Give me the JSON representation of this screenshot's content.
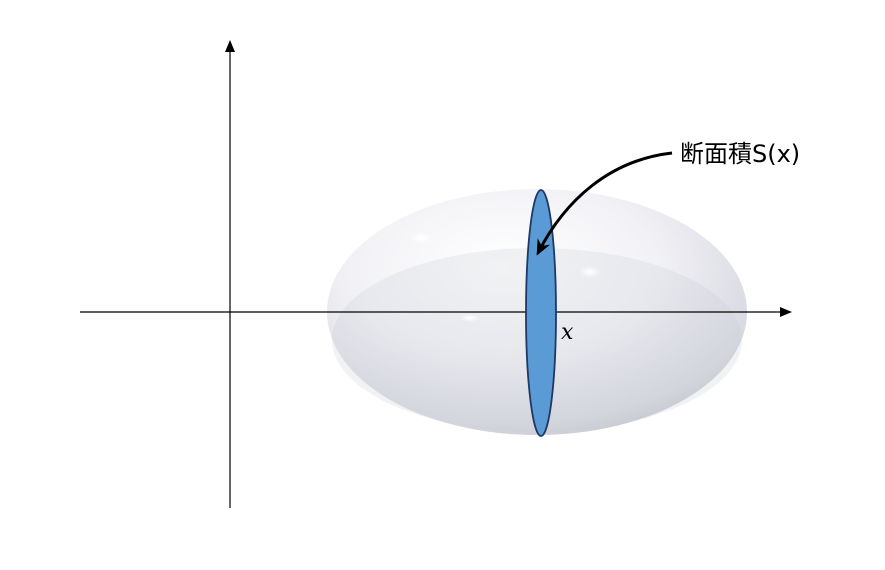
{
  "diagram": {
    "cross_section_label": "断面積S(x)",
    "x_axis_label": "x",
    "colors": {
      "background": "#ffffff",
      "axis": "#000000",
      "cross_section_fill": "#5b9bd5",
      "cross_section_stroke": "#1f3864",
      "solid_highlight": "#ffffff",
      "solid_shadow": "#b8bac4"
    }
  }
}
